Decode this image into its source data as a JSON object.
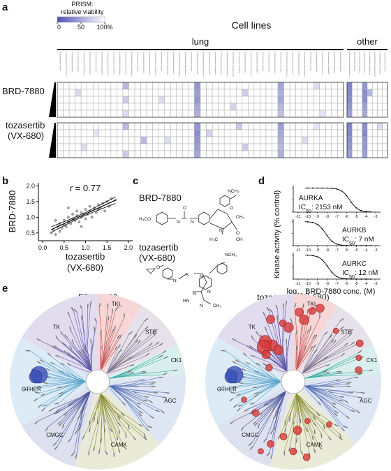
{
  "figure": {
    "a": {
      "letter": "a",
      "legend": {
        "title": "PRISM:",
        "subtitle": "relative viability",
        "ticks": [
          0,
          50,
          {
            "value": 100,
            "label": "100%"
          }
        ],
        "color": "#4b50b4"
      },
      "header": "Cell lines",
      "groups": [
        "lung",
        "other"
      ],
      "compounds": [
        {
          "name": [
            "BRD-7880"
          ],
          "blocks": [
            [
              [
                100,
                100,
                100,
                100,
                100,
                100,
                100,
                100,
                100,
                100,
                100,
                60,
                100,
                100,
                100,
                100,
                100,
                100,
                100,
                100,
                100,
                100,
                100,
                40,
                100,
                100,
                100,
                100,
                100,
                100,
                100,
                100,
                100,
                100,
                100,
                100,
                100,
                50,
                100,
                100,
                100,
                100,
                100,
                80,
                100,
                100,
                100,
                100
              ],
              [
                100,
                100,
                100,
                80,
                100,
                100,
                100,
                100,
                100,
                100,
                100,
                100,
                100,
                100,
                100,
                100,
                100,
                100,
                100,
                100,
                100,
                100,
                100,
                45,
                100,
                100,
                100,
                100,
                100,
                100,
                100,
                70,
                100,
                100,
                100,
                100,
                100,
                55,
                100,
                100,
                100,
                100,
                100,
                100,
                100,
                100,
                100,
                100
              ],
              [
                100,
                100,
                100,
                100,
                100,
                100,
                100,
                100,
                100,
                100,
                100,
                70,
                100,
                100,
                100,
                100,
                100,
                80,
                100,
                100,
                100,
                100,
                100,
                40,
                100,
                100,
                100,
                100,
                100,
                100,
                100,
                100,
                100,
                100,
                100,
                100,
                100,
                50,
                100,
                100,
                100,
                100,
                100,
                100,
                100,
                100,
                100,
                100
              ],
              [
                100,
                100,
                100,
                100,
                100,
                100,
                100,
                100,
                100,
                100,
                100,
                100,
                100,
                100,
                100,
                100,
                100,
                100,
                100,
                100,
                100,
                100,
                100,
                50,
                100,
                100,
                100,
                100,
                100,
                75,
                100,
                100,
                100,
                100,
                100,
                100,
                100,
                60,
                100,
                100,
                100,
                100,
                100,
                100,
                100,
                100,
                100,
                100
              ],
              [
                100,
                100,
                100,
                100,
                100,
                100,
                100,
                100,
                100,
                100,
                100,
                80,
                100,
                100,
                100,
                100,
                100,
                100,
                100,
                100,
                100,
                100,
                100,
                55,
                100,
                100,
                100,
                100,
                100,
                100,
                100,
                100,
                100,
                100,
                100,
                100,
                100,
                65,
                100,
                100,
                100,
                100,
                100,
                100,
                85,
                100,
                100,
                100
              ]
            ],
            [
              [
                30,
                100,
                100,
                40,
                100,
                100,
                100,
                100
              ],
              [
                30,
                100,
                100,
                35,
                60,
                100,
                100,
                100
              ],
              [
                35,
                100,
                100,
                35,
                100,
                100,
                100,
                100
              ],
              [
                40,
                100,
                100,
                45,
                100,
                100,
                100,
                100
              ],
              [
                45,
                100,
                100,
                50,
                100,
                100,
                100,
                100
              ]
            ]
          ]
        },
        {
          "name": [
            "tozasertib",
            "(VX-680)"
          ],
          "blocks": [
            [
              [
                100,
                100,
                100,
                100,
                100,
                100,
                100,
                100,
                100,
                100,
                100,
                60,
                100,
                100,
                100,
                100,
                100,
                100,
                100,
                100,
                100,
                100,
                100,
                40,
                100,
                100,
                100,
                100,
                100,
                100,
                70,
                100,
                100,
                100,
                100,
                100,
                100,
                45,
                100,
                100,
                100,
                100,
                100,
                85,
                100,
                100,
                100,
                100
              ],
              [
                100,
                100,
                100,
                100,
                100,
                100,
                85,
                100,
                100,
                100,
                100,
                100,
                100,
                100,
                100,
                100,
                100,
                100,
                100,
                100,
                100,
                100,
                100,
                35,
                100,
                75,
                100,
                100,
                100,
                100,
                100,
                100,
                100,
                100,
                100,
                100,
                100,
                50,
                100,
                100,
                100,
                100,
                100,
                100,
                100,
                100,
                100,
                100
              ],
              [
                100,
                100,
                100,
                100,
                100,
                100,
                100,
                100,
                100,
                100,
                100,
                100,
                100,
                100,
                60,
                100,
                100,
                100,
                80,
                100,
                100,
                100,
                100,
                40,
                100,
                100,
                100,
                100,
                100,
                100,
                100,
                100,
                100,
                100,
                100,
                100,
                100,
                55,
                100,
                100,
                100,
                80,
                100,
                100,
                100,
                100,
                100,
                100
              ],
              [
                100,
                100,
                100,
                100,
                80,
                100,
                100,
                100,
                100,
                100,
                100,
                100,
                100,
                100,
                100,
                100,
                100,
                100,
                100,
                100,
                100,
                100,
                100,
                45,
                100,
                100,
                100,
                100,
                100,
                100,
                100,
                70,
                100,
                100,
                100,
                100,
                100,
                60,
                100,
                100,
                100,
                100,
                100,
                100,
                100,
                100,
                100,
                100
              ],
              [
                100,
                100,
                100,
                100,
                100,
                100,
                100,
                100,
                100,
                100,
                100,
                70,
                100,
                100,
                100,
                100,
                100,
                100,
                100,
                100,
                100,
                100,
                100,
                50,
                100,
                100,
                100,
                100,
                100,
                100,
                100,
                100,
                100,
                100,
                100,
                100,
                100,
                55,
                100,
                100,
                100,
                100,
                100,
                100,
                100,
                100,
                100,
                100
              ]
            ],
            [
              [
                30,
                100,
                100,
                35,
                100,
                100,
                80,
                100
              ],
              [
                30,
                100,
                100,
                30,
                100,
                100,
                100,
                100
              ],
              [
                35,
                100,
                100,
                40,
                100,
                100,
                100,
                100
              ],
              [
                40,
                100,
                100,
                40,
                100,
                100,
                100,
                100
              ],
              [
                45,
                100,
                100,
                45,
                100,
                100,
                100,
                100
              ]
            ]
          ]
        }
      ]
    },
    "b": {
      "letter": "b",
      "chart_data": {
        "type": "scatter",
        "annotation": {
          "symbol": "r",
          "text": " = 0.77"
        },
        "x_label": [
          "tozasertib",
          "(VX-680)"
        ],
        "y_label": "BRD-7880",
        "x": [
          0.2,
          0.25,
          0.3,
          0.35,
          0.4,
          0.4,
          0.45,
          0.5,
          0.5,
          0.55,
          0.6,
          0.6,
          0.65,
          0.7,
          0.7,
          0.75,
          0.8,
          0.8,
          0.85,
          0.9,
          0.9,
          0.95,
          1.0,
          1.0,
          1.05,
          1.1,
          1.1,
          1.15,
          1.2,
          1.25,
          1.3,
          1.3,
          1.35,
          1.4,
          1.45,
          1.5,
          1.55,
          1.6,
          1.7,
          0.3,
          0.6,
          0.9
        ],
        "y": [
          0.5,
          0.6,
          0.45,
          0.7,
          0.55,
          0.8,
          0.65,
          0.75,
          0.9,
          0.7,
          0.85,
          1.0,
          0.8,
          0.95,
          1.1,
          0.9,
          1.05,
          1.2,
          0.85,
          1.0,
          1.15,
          1.1,
          0.95,
          1.25,
          1.1,
          1.2,
          1.35,
          1.0,
          1.3,
          1.15,
          1.4,
          1.25,
          1.3,
          1.45,
          1.2,
          1.5,
          1.35,
          1.6,
          1.55,
          0.9,
          1.3,
          0.7
        ],
        "xlim": [
          -0.1,
          2.1
        ],
        "ylim": [
          0.25,
          2.1
        ],
        "xticks": [
          {
            "value": 0,
            "label": "0.0"
          },
          0.5,
          {
            "value": 1,
            "label": "1.0"
          },
          1.5,
          {
            "value": 2,
            "label": "2.0"
          }
        ],
        "yticks": [
          0.5,
          {
            "value": 1,
            "label": "1.0"
          },
          1.5,
          {
            "value": 2,
            "label": "2.0"
          }
        ],
        "color": "#a8a8a8"
      }
    },
    "c": {
      "letter": "c",
      "compounds": [
        {
          "name": [
            "BRD-7880"
          ],
          "atoms": [
            "H₃CO",
            "N",
            "O",
            "N",
            "O",
            "NCH₃",
            "CH₃",
            "N",
            "O",
            "H₃C",
            "OH"
          ]
        },
        {
          "name": [
            "tozasertib",
            "(VX-680)"
          ],
          "atoms": [
            "O",
            "N",
            "S",
            "N",
            "N",
            "NCH₃",
            "N",
            "HN",
            "N",
            "CH₃"
          ]
        }
      ]
    },
    "d": {
      "letter": "d",
      "y_label": "Kinase activity (% control)",
      "x_label": {
        "prefix": "log",
        "sub": "10",
        "text": " BRD-7880 conc. (M)"
      },
      "xticks": [
        -11,
        -10,
        -9,
        -8,
        -7,
        -6,
        -5,
        -4,
        -3
      ],
      "xlim": [
        -11.5,
        -2.5
      ],
      "kinases": [
        {
          "name": "AURKA",
          "ic50_nm": 2153,
          "ic50_label": {
            "prefix": "IC",
            "sub": "50",
            "text": ": 2153 nM"
          }
        },
        {
          "name": "AURKB",
          "ic50_nm": 7,
          "ic50_label": {
            "prefix": "IC",
            "sub": "50",
            "text": ": 7 nM"
          }
        },
        {
          "name": "AURKC",
          "ic50_nm": 12,
          "ic50_label": {
            "prefix": "IC",
            "sub": "50",
            "text": ": 12 nM"
          }
        }
      ]
    },
    "e": {
      "letter": "e",
      "trees": [
        {
          "title": "BRD-7880"
        },
        {
          "title": "tozasertib (VX-680)"
        }
      ],
      "groups": [
        "TK",
        "TKL",
        "STE",
        "CK1",
        "AGC",
        "CAMK",
        "CMGC",
        "OTHER"
      ]
    }
  }
}
